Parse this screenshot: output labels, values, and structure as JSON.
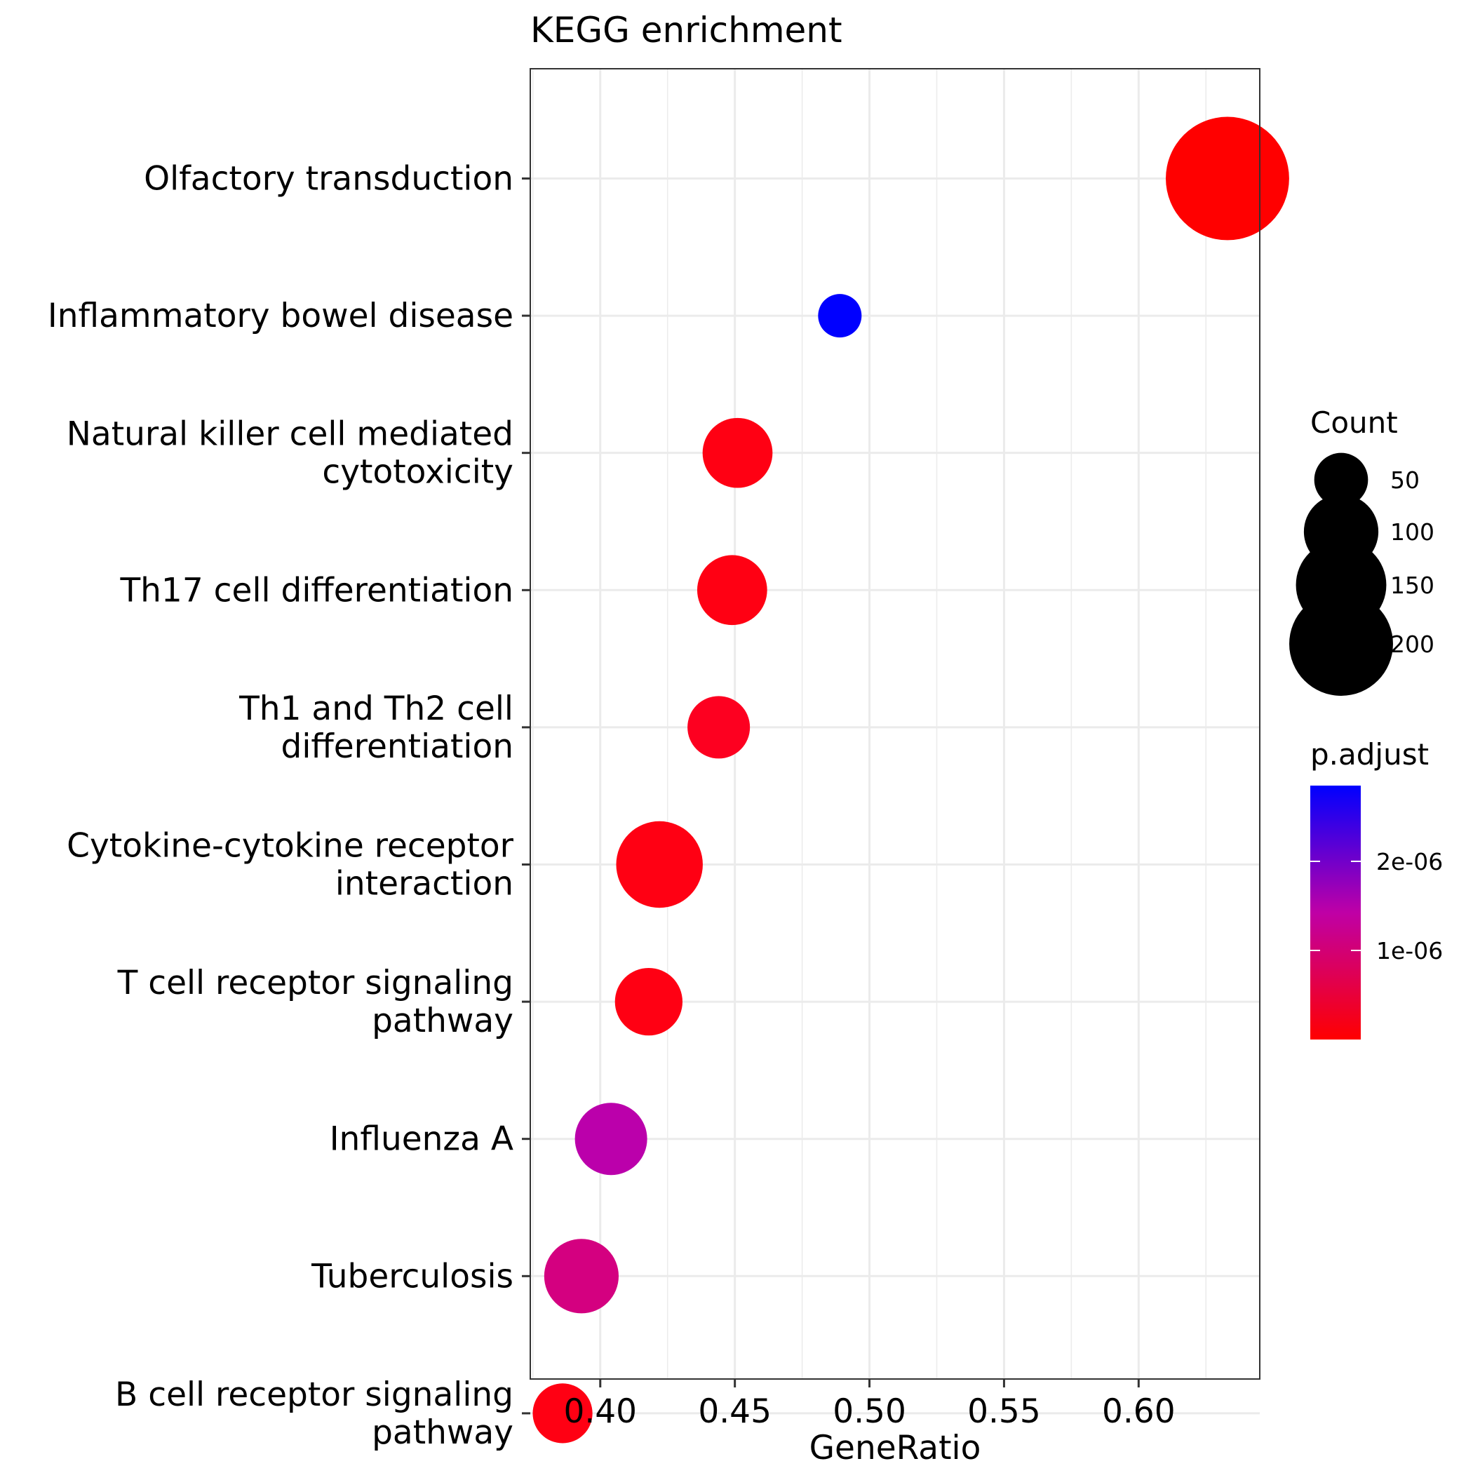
{
  "chart_data": {
    "type": "scatter",
    "title": "KEGG enrichment",
    "xlabel": "GeneRatio",
    "ylabel": "",
    "xlim": [
      0.374,
      0.645
    ],
    "x_ticks": [
      "0.40",
      "0.45",
      "0.50",
      "0.55",
      "0.60"
    ],
    "x_tick_values": [
      0.4,
      0.45,
      0.5,
      0.55,
      0.6
    ],
    "grid": true,
    "categories": [
      "Olfactory transduction",
      "Inflammatory bowel disease",
      "Natural killer cell mediated cytotoxicity",
      "Th17 cell differentiation",
      "Th1 and Th2 cell differentiation",
      "Cytokine-cytokine receptor interaction",
      "T cell receptor signaling pathway",
      "Influenza A",
      "Tuberculosis",
      "B cell receptor signaling pathway"
    ],
    "category_lines": [
      [
        "Olfactory transduction"
      ],
      [
        "Inflammatory bowel disease"
      ],
      [
        "Natural killer cell mediated",
        "cytotoxicity"
      ],
      [
        "Th17 cell differentiation"
      ],
      [
        "Th1 and Th2 cell",
        "differentiation"
      ],
      [
        "Cytokine-cytokine receptor",
        "interaction"
      ],
      [
        "T cell receptor signaling",
        "pathway"
      ],
      [
        "Influenza A"
      ],
      [
        "Tuberculosis"
      ],
      [
        "B cell receptor signaling",
        "pathway"
      ]
    ],
    "points": [
      {
        "category": "Olfactory transduction",
        "x": 0.633,
        "count": 230,
        "p_adjust": 1e-10,
        "color": "#FF0000"
      },
      {
        "category": "Inflammatory bowel disease",
        "x": 0.489,
        "count": 25,
        "p_adjust": 2.85e-06,
        "color": "#0000FF"
      },
      {
        "category": "Natural killer cell mediated cytotoxicity",
        "x": 0.451,
        "count": 70,
        "p_adjust": 1e-07,
        "color": "#FF0013"
      },
      {
        "category": "Th17 cell differentiation",
        "x": 0.449,
        "count": 70,
        "p_adjust": 1e-07,
        "color": "#FF0013"
      },
      {
        "category": "Th1 and Th2 cell differentiation",
        "x": 0.444,
        "count": 55,
        "p_adjust": 1.5e-07,
        "color": "#FD0020"
      },
      {
        "category": "Cytokine-cytokine receptor interaction",
        "x": 0.422,
        "count": 110,
        "p_adjust": 1e-07,
        "color": "#FF0013"
      },
      {
        "category": "T cell receptor signaling pathway",
        "x": 0.418,
        "count": 65,
        "p_adjust": 1e-07,
        "color": "#FF0013"
      },
      {
        "category": "Influenza A",
        "x": 0.404,
        "count": 75,
        "p_adjust": 2.1e-06,
        "color": "#BB00AB"
      },
      {
        "category": "Tuberculosis",
        "x": 0.393,
        "count": 80,
        "p_adjust": 1.45e-06,
        "color": "#D40080"
      },
      {
        "category": "B cell receptor signaling pathway",
        "x": 0.386,
        "count": 50,
        "p_adjust": 1e-07,
        "color": "#FF0013"
      }
    ],
    "size_legend": {
      "title": "Count",
      "values": [
        50,
        100,
        150,
        200
      ],
      "labels": [
        "50",
        "100",
        "150",
        "200"
      ]
    },
    "color_legend": {
      "title": "p.adjust",
      "low_color": "#FF0000",
      "mid_color": "#BF00A6",
      "high_color": "#0000FF",
      "range": [
        1e-10,
        2.85e-06
      ],
      "breaks": [
        1e-06,
        2e-06
      ],
      "labels": [
        "1e-06",
        "2e-06"
      ]
    }
  }
}
